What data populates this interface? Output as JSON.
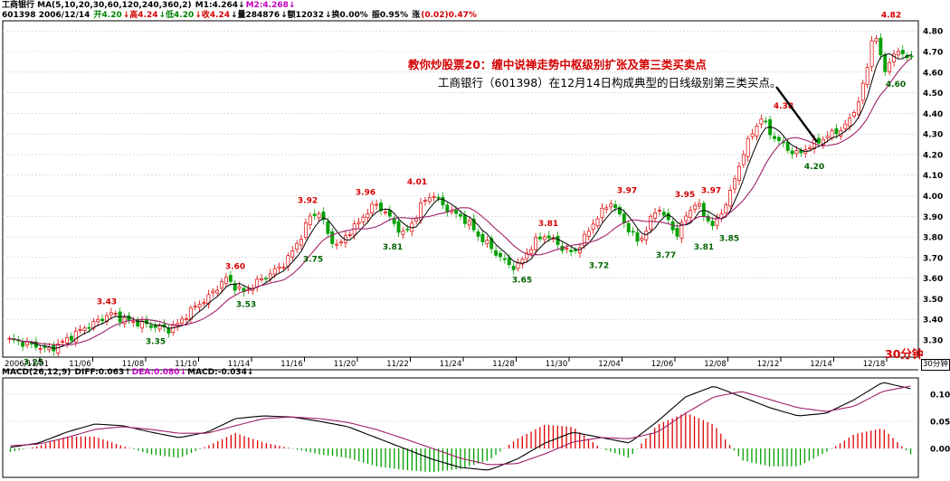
{
  "header": {
    "line1": [
      {
        "text": "工商银行 MA(5,10,20,30,60,120,240,360,2) ",
        "color": "#000000"
      },
      {
        "text": "M1:4.264↓",
        "color": "#000000"
      },
      {
        "text": "M2:4.268↓",
        "color": "#c000c0"
      }
    ],
    "line2": [
      {
        "text": "601398 2006/12/14 ",
        "color": "#000000"
      },
      {
        "text": "开4.20",
        "color": "#008000"
      },
      {
        "text": "↓高4.24",
        "color": "#d40000"
      },
      {
        "text": "↓低4.20",
        "color": "#008000"
      },
      {
        "text": "↓收4.24",
        "color": "#d40000"
      },
      {
        "text": "↓量284876",
        "color": "#000000"
      },
      {
        "text": "↓额12032",
        "color": "#000000"
      },
      {
        "text": "↓换0.00%",
        "color": "#000000"
      },
      {
        "text": " 振0.95%",
        "color": "#000000"
      },
      {
        "text": " 涨",
        "color": "#000000"
      },
      {
        "text": "(0.02)0.47%",
        "color": "#d40000"
      }
    ]
  },
  "annotations": {
    "title": "教你炒股票20：缠中说禅走势中枢级别扩张及第三类买卖点",
    "subtitle": "工商银行（601398）在12月14日构成典型的日线级别第三类买点。"
  },
  "period_label": "30分钟",
  "period_button": "30分钟",
  "macd_header": [
    {
      "text": "MACD(26,12,9) ",
      "color": "#000000"
    },
    {
      "text": "DIFF:0.063↑",
      "color": "#000000"
    },
    {
      "text": "DEA:0.080↓",
      "color": "#c000c0"
    },
    {
      "text": "MACD:-0.034↓",
      "color": "#000000"
    }
  ],
  "colors": {
    "up": "#e00000",
    "down": "#00a000",
    "price_line": "#000000",
    "ma_line": "#a0206a",
    "high_label": "#d40000",
    "low_label": "#006400",
    "grid": "#c8c8c8"
  },
  "chart_data": [
    {
      "type": "candlestick",
      "title": "",
      "x_tick_labels": [
        "2006/11/01",
        "11/06",
        "11/08",
        "11/10",
        "11/14",
        "11/16",
        "11/20",
        "11/22",
        "11/24",
        "11/28",
        "11/30",
        "12/04",
        "12/06",
        "12/08",
        "12/12",
        "12/14",
        "12/18"
      ],
      "y_tick_labels": [
        "3.30",
        "3.40",
        "3.50",
        "3.60",
        "3.70",
        "3.80",
        "3.90",
        "4.00",
        "4.10",
        "4.20",
        "4.30",
        "4.40",
        "4.50",
        "4.60",
        "4.70",
        "4.80"
      ],
      "ylim": [
        3.27,
        4.85
      ],
      "grid": true,
      "price_path": [
        3.3,
        3.29,
        3.28,
        3.27,
        3.25,
        3.27,
        3.3,
        3.33,
        3.36,
        3.38,
        3.41,
        3.43,
        3.4,
        3.39,
        3.38,
        3.37,
        3.36,
        3.35,
        3.38,
        3.43,
        3.47,
        3.5,
        3.55,
        3.6,
        3.56,
        3.53,
        3.57,
        3.6,
        3.63,
        3.66,
        3.72,
        3.8,
        3.9,
        3.92,
        3.8,
        3.75,
        3.82,
        3.86,
        3.92,
        3.96,
        3.92,
        3.86,
        3.81,
        3.88,
        3.97,
        4.01,
        3.96,
        3.92,
        3.9,
        3.86,
        3.8,
        3.76,
        3.71,
        3.67,
        3.65,
        3.72,
        3.78,
        3.81,
        3.78,
        3.74,
        3.72,
        3.78,
        3.86,
        3.92,
        3.97,
        3.9,
        3.83,
        3.77,
        3.86,
        3.95,
        3.88,
        3.81,
        3.9,
        3.97,
        3.9,
        3.85,
        3.94,
        4.05,
        4.2,
        4.3,
        4.38,
        4.3,
        4.26,
        4.22,
        4.2,
        4.24,
        4.26,
        4.29,
        4.31,
        4.34,
        4.42,
        4.55,
        4.82,
        4.6,
        4.68,
        4.7,
        4.66
      ],
      "high_labels": [
        {
          "price": "3.43",
          "text": "3.43"
        },
        {
          "price": "3.60",
          "text": "3.60"
        },
        {
          "price": "3.92",
          "text": "3.92"
        },
        {
          "price": "3.96",
          "text": "3.96"
        },
        {
          "price": "4.01",
          "text": "4.01"
        },
        {
          "price": "3.81",
          "text": "3.81"
        },
        {
          "price": "3.97",
          "text": "3.97"
        },
        {
          "price": "3.95",
          "text": "3.95"
        },
        {
          "price": "3.97",
          "text": "3.97"
        },
        {
          "price": "4.38",
          "text": "4.38"
        },
        {
          "price": "4.82",
          "text": "4.82"
        }
      ],
      "low_labels": [
        {
          "price": "3.25",
          "text": "3.25"
        },
        {
          "price": "3.35",
          "text": "3.35"
        },
        {
          "price": "3.53",
          "text": "3.53"
        },
        {
          "price": "3.75",
          "text": "3.75"
        },
        {
          "price": "3.81",
          "text": "3.81"
        },
        {
          "price": "3.65",
          "text": "3.65"
        },
        {
          "price": "3.72",
          "text": "3.72"
        },
        {
          "price": "3.77",
          "text": "3.77"
        },
        {
          "price": "3.81",
          "text": "3.81"
        },
        {
          "price": "3.85",
          "text": "3.85"
        },
        {
          "price": "4.20",
          "text": "4.20"
        },
        {
          "price": "4.60",
          "text": "4.60"
        }
      ]
    },
    {
      "type": "line",
      "title": "MACD(26,12,9)",
      "y_tick_labels": [
        "0.00",
        "0.05",
        "0.10"
      ],
      "ylim": [
        -0.045,
        0.125
      ],
      "series": [
        {
          "name": "DIFF",
          "values": [
            0.002,
            0.01,
            0.03,
            0.045,
            0.042,
            0.03,
            0.02,
            0.03,
            0.055,
            0.06,
            0.058,
            0.05,
            0.04,
            0.02,
            0.0,
            -0.02,
            -0.035,
            -0.04,
            -0.02,
            0.01,
            0.03,
            0.02,
            0.01,
            0.05,
            0.095,
            0.115,
            0.095,
            0.075,
            0.06,
            0.065,
            0.09,
            0.122,
            0.11
          ]
        },
        {
          "name": "DEA",
          "values": [
            0.005,
            0.008,
            0.02,
            0.035,
            0.04,
            0.035,
            0.028,
            0.028,
            0.042,
            0.055,
            0.058,
            0.055,
            0.048,
            0.035,
            0.018,
            0.0,
            -0.018,
            -0.03,
            -0.028,
            -0.01,
            0.012,
            0.02,
            0.018,
            0.03,
            0.065,
            0.095,
            0.105,
            0.09,
            0.075,
            0.068,
            0.078,
            0.105,
            0.115
          ]
        }
      ]
    }
  ]
}
